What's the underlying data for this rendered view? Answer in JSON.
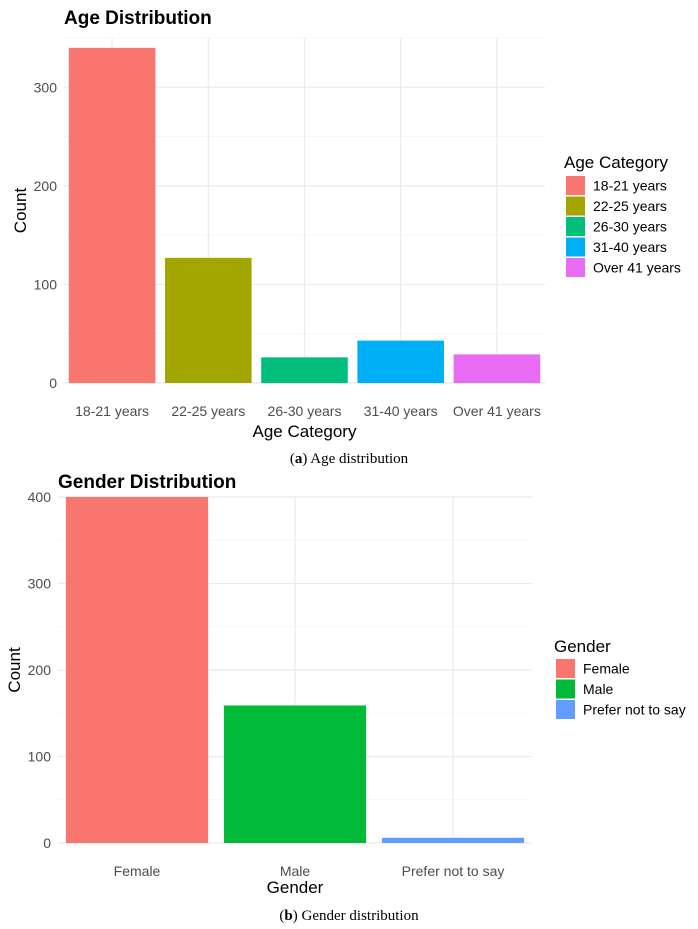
{
  "chart_data": [
    {
      "type": "bar",
      "title": "Age Distribution",
      "xlabel": "Age Category",
      "ylabel": "Count",
      "categories": [
        "18-21 years",
        "22-25 years",
        "26-30 years",
        "31-40 years",
        "Over 41 years"
      ],
      "values": [
        340,
        127,
        26,
        43,
        29
      ],
      "colors": [
        "#F8766D",
        "#A3A500",
        "#00BF7D",
        "#00B0F6",
        "#E76BF3"
      ],
      "ylim": [
        0,
        350
      ],
      "yticks": [
        0,
        100,
        200,
        300
      ],
      "legend": {
        "title": "Age Category",
        "position": "right"
      },
      "grid": true,
      "caption": {
        "label": "a",
        "text": " Age distribution"
      }
    },
    {
      "type": "bar",
      "title": "Gender Distribution",
      "xlabel": "Gender",
      "ylabel": "Count",
      "categories": [
        "Female",
        "Male",
        "Prefer not to say"
      ],
      "values": [
        400,
        159,
        6
      ],
      "colors": [
        "#F8766D",
        "#00BA38",
        "#619CFF"
      ],
      "ylim": [
        0,
        400
      ],
      "yticks": [
        0,
        100,
        200,
        300,
        400
      ],
      "legend": {
        "title": "Gender",
        "position": "right"
      },
      "grid": true,
      "caption": {
        "label": "b",
        "text": " Gender distribution"
      }
    }
  ]
}
